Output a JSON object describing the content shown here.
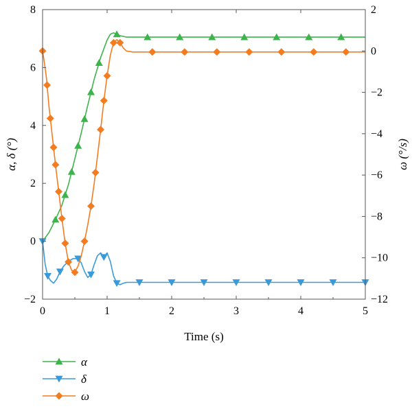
{
  "chart_data": {
    "type": "line",
    "xlabel": "Time (s)",
    "ylabel_left": "α, δ (°)",
    "ylabel_right": "ω (°/s)",
    "xlim": [
      0,
      5
    ],
    "ylim_left": [
      -2,
      8
    ],
    "ylim_right": [
      -12,
      2
    ],
    "x_ticks": [
      "0",
      "1",
      "2",
      "3",
      "4",
      "5"
    ],
    "y_left_ticks": [
      "−2",
      "0",
      "2",
      "4",
      "6",
      "8"
    ],
    "y_right_ticks": [
      "−12",
      "−10",
      "−8",
      "−6",
      "−4",
      "−2",
      "0",
      "2"
    ],
    "grid": false,
    "legend_position": "below-left",
    "series": [
      {
        "name": "α",
        "axis": "left",
        "color": "#3cb44b",
        "marker": "triangle-up",
        "x": [
          0,
          0.1,
          0.2,
          0.3,
          0.4,
          0.5,
          0.6,
          0.7,
          0.8,
          0.9,
          1.0,
          1.05,
          1.1,
          1.15,
          1.2,
          1.3,
          1.4,
          1.6,
          2.0,
          3.0,
          4.0,
          5.0
        ],
        "y": [
          0,
          0.3,
          0.75,
          1.25,
          1.95,
          2.85,
          3.75,
          4.7,
          5.6,
          6.35,
          6.95,
          7.15,
          7.2,
          7.15,
          7.1,
          7.05,
          7.05,
          7.05,
          7.05,
          7.05,
          7.05,
          7.05
        ],
        "marker_x": [
          0.2,
          0.35,
          0.45,
          0.55,
          0.65,
          0.75,
          0.875,
          1.15,
          1.625,
          2.125,
          2.625,
          3.125,
          3.625,
          4.125,
          4.625
        ]
      },
      {
        "name": "δ",
        "axis": "left",
        "color": "#3a9ad9",
        "marker": "triangle-down",
        "x": [
          0,
          0.04,
          0.08,
          0.12,
          0.17,
          0.22,
          0.27,
          0.33,
          0.4,
          0.47,
          0.55,
          0.6,
          0.65,
          0.7,
          0.75,
          0.8,
          0.85,
          0.9,
          0.95,
          1.0,
          1.05,
          1.1,
          1.15,
          1.2,
          1.25,
          1.3,
          1.4,
          1.5,
          2.0,
          3.0,
          4.0,
          5.0
        ],
        "y": [
          0,
          -0.8,
          -1.2,
          -1.35,
          -1.45,
          -1.3,
          -1.05,
          -0.85,
          -0.7,
          -0.6,
          -0.6,
          -0.75,
          -1.05,
          -1.25,
          -1.15,
          -0.8,
          -0.5,
          -0.4,
          -0.55,
          -0.4,
          -0.7,
          -1.2,
          -1.45,
          -1.5,
          -1.45,
          -1.42,
          -1.42,
          -1.42,
          -1.42,
          -1.42,
          -1.42,
          -1.42
        ],
        "marker_x": [
          0,
          0.08,
          0.27,
          0.55,
          0.75,
          0.95,
          1.15,
          1.5,
          2.0,
          2.5,
          3.0,
          3.5,
          4.0,
          4.5,
          5.0
        ]
      },
      {
        "name": "ω",
        "axis": "right",
        "color": "#f47c20",
        "marker": "diamond",
        "x": [
          0,
          0.03,
          0.06,
          0.1,
          0.15,
          0.2,
          0.25,
          0.3,
          0.35,
          0.4,
          0.45,
          0.5,
          0.55,
          0.6,
          0.65,
          0.7,
          0.75,
          0.8,
          0.85,
          0.9,
          0.95,
          1.0,
          1.05,
          1.1,
          1.15,
          1.2,
          1.25,
          1.3,
          1.4,
          1.5,
          1.7,
          2.0,
          3.0,
          4.0,
          5.0
        ],
        "y": [
          0,
          -0.6,
          -1.3,
          -2.7,
          -4.1,
          -5.5,
          -6.8,
          -8.1,
          -9.3,
          -10.2,
          -10.6,
          -10.7,
          -10.4,
          -9.9,
          -9.2,
          -8.4,
          -7.5,
          -6.4,
          -5.1,
          -3.8,
          -2.4,
          -1.2,
          -0.2,
          0.4,
          0.55,
          0.4,
          0.15,
          0,
          -0.05,
          -0.05,
          -0.05,
          -0.05,
          -0.05,
          -0.05,
          -0.05
        ],
        "marker_x": [
          0,
          0.07,
          0.12,
          0.17,
          0.2,
          0.25,
          0.3,
          0.35,
          0.4,
          0.5,
          0.65,
          0.75,
          0.82,
          0.9,
          0.95,
          1.0,
          1.1,
          1.2,
          1.7,
          2.2,
          2.7,
          3.2,
          3.7,
          4.2,
          4.7
        ]
      }
    ]
  },
  "legend": {
    "items": [
      {
        "label": "α",
        "color": "#3cb44b",
        "marker": "triangle-up"
      },
      {
        "label": "δ",
        "color": "#3a9ad9",
        "marker": "triangle-down"
      },
      {
        "label": "ω",
        "color": "#f47c20",
        "marker": "diamond"
      }
    ]
  }
}
